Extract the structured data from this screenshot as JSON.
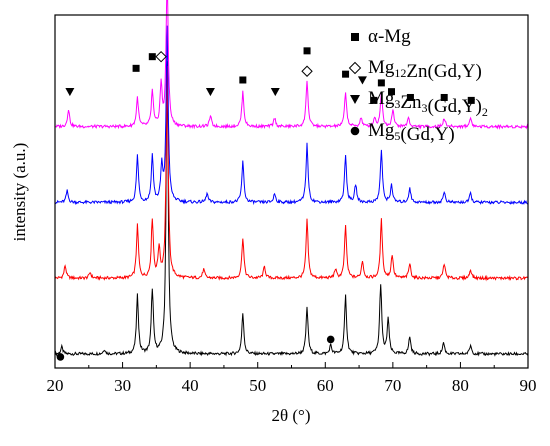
{
  "chart_data": {
    "type": "line",
    "title": "",
    "xlabel": "2θ (°)",
    "ylabel": "intensity (a.u.)",
    "xlim": [
      20,
      90
    ],
    "x_ticks": [
      20,
      30,
      40,
      50,
      60,
      70,
      80,
      90
    ],
    "y_ticks_shown": false,
    "grid": false,
    "legend_position": "top-right",
    "legend": [
      {
        "symbol": "filled-square",
        "label_parts": [
          {
            "t": "α-Mg"
          }
        ]
      },
      {
        "symbol": "open-diamond",
        "label_parts": [
          {
            "t": "Mg"
          },
          {
            "t": "12",
            "sub": true
          },
          {
            "t": "Zn(Gd,Y)"
          }
        ]
      },
      {
        "symbol": "filled-down-triangle",
        "label_parts": [
          {
            "t": "Mg"
          },
          {
            "t": "3",
            "sub": true
          },
          {
            "t": "Zn"
          },
          {
            "t": "3",
            "sub": true
          },
          {
            "t": "(Gd,Y)"
          },
          {
            "t": "2",
            "sub": true
          }
        ]
      },
      {
        "symbol": "filled-circle",
        "label_parts": [
          {
            "t": "Mg"
          },
          {
            "t": "5",
            "sub": true
          },
          {
            "t": "(Gd,Y)"
          }
        ]
      }
    ],
    "series": [
      {
        "color": "#000000",
        "baseline": 0,
        "peaks": [
          [
            21.0,
            1.2
          ],
          [
            27.3,
            0.8
          ],
          [
            32.2,
            10
          ],
          [
            34.4,
            11
          ],
          [
            36.6,
            50
          ],
          [
            47.8,
            7
          ],
          [
            57.3,
            8
          ],
          [
            60.8,
            1.5
          ],
          [
            63.0,
            10
          ],
          [
            68.2,
            12
          ],
          [
            69.3,
            6
          ],
          [
            72.5,
            3
          ],
          [
            77.5,
            2
          ],
          [
            81.5,
            1.5
          ]
        ]
      },
      {
        "color": "#ff0000",
        "baseline": 13,
        "peaks": [
          [
            21.5,
            2.2
          ],
          [
            25.2,
            1
          ],
          [
            32.2,
            9
          ],
          [
            34.4,
            10
          ],
          [
            35.4,
            5
          ],
          [
            36.6,
            36
          ],
          [
            42.0,
            1.5
          ],
          [
            47.8,
            7
          ],
          [
            51.0,
            2
          ],
          [
            57.3,
            10
          ],
          [
            61.5,
            1.5
          ],
          [
            63.0,
            9
          ],
          [
            65.5,
            3
          ],
          [
            68.3,
            10
          ],
          [
            69.9,
            4
          ],
          [
            72.5,
            2.5
          ],
          [
            77.6,
            2.5
          ],
          [
            81.5,
            1.5
          ]
        ]
      },
      {
        "color": "#0000ff",
        "baseline": 26,
        "peaks": [
          [
            21.8,
            2
          ],
          [
            32.2,
            8
          ],
          [
            34.4,
            8
          ],
          [
            35.8,
            6
          ],
          [
            36.6,
            30
          ],
          [
            42.5,
            1.5
          ],
          [
            47.8,
            7
          ],
          [
            52.5,
            1.5
          ],
          [
            57.3,
            10
          ],
          [
            63.0,
            8
          ],
          [
            64.5,
            3
          ],
          [
            68.3,
            9
          ],
          [
            69.8,
            3
          ],
          [
            72.5,
            2.5
          ],
          [
            77.6,
            1.8
          ],
          [
            81.5,
            1.5
          ]
        ]
      },
      {
        "color": "#ff00ff",
        "baseline": 39,
        "peaks": [
          [
            22.0,
            3
          ],
          [
            32.2,
            5
          ],
          [
            34.4,
            6
          ],
          [
            35.7,
            7
          ],
          [
            36.6,
            26
          ],
          [
            43.0,
            1.8
          ],
          [
            47.8,
            6
          ],
          [
            52.5,
            1.5
          ],
          [
            57.3,
            8
          ],
          [
            63.0,
            6
          ],
          [
            65.3,
            1.5
          ],
          [
            67.3,
            1.5
          ],
          [
            68.3,
            6
          ],
          [
            70.0,
            3
          ],
          [
            72.3,
            1.5
          ],
          [
            77.6,
            1.5
          ],
          [
            81.5,
            1.5
          ]
        ]
      }
    ],
    "annotations": [
      {
        "symbol": "filled-circle",
        "x": 20.8,
        "level": -0.5
      },
      {
        "symbol": "filled-circle",
        "x": 60.8,
        "level": 2.5
      },
      {
        "symbol": "filled-down-triangle",
        "x": 22.2,
        "level": 45
      },
      {
        "symbol": "filled-down-triangle",
        "x": 43.0,
        "level": 45
      },
      {
        "symbol": "filled-down-triangle",
        "x": 52.6,
        "level": 45
      },
      {
        "symbol": "filled-down-triangle",
        "x": 65.5,
        "level": 47
      },
      {
        "symbol": "filled-square",
        "x": 32.0,
        "level": 49
      },
      {
        "symbol": "filled-square",
        "x": 34.4,
        "level": 51
      },
      {
        "symbol": "filled-square",
        "x": 36.8,
        "level": 89
      },
      {
        "symbol": "filled-square",
        "x": 47.8,
        "level": 47
      },
      {
        "symbol": "filled-square",
        "x": 57.3,
        "level": 52
      },
      {
        "symbol": "filled-square",
        "x": 63.0,
        "level": 48
      },
      {
        "symbol": "filled-square",
        "x": 67.2,
        "level": 43.5
      },
      {
        "symbol": "filled-square",
        "x": 68.3,
        "level": 46.5
      },
      {
        "symbol": "filled-square",
        "x": 69.8,
        "level": 45
      },
      {
        "symbol": "filled-square",
        "x": 72.6,
        "level": 44
      },
      {
        "symbol": "filled-square",
        "x": 77.6,
        "level": 44
      },
      {
        "symbol": "filled-square",
        "x": 81.6,
        "level": 43.5
      },
      {
        "symbol": "open-diamond",
        "x": 35.7,
        "level": 51
      },
      {
        "symbol": "open-diamond",
        "x": 57.3,
        "level": 48.5
      }
    ]
  }
}
